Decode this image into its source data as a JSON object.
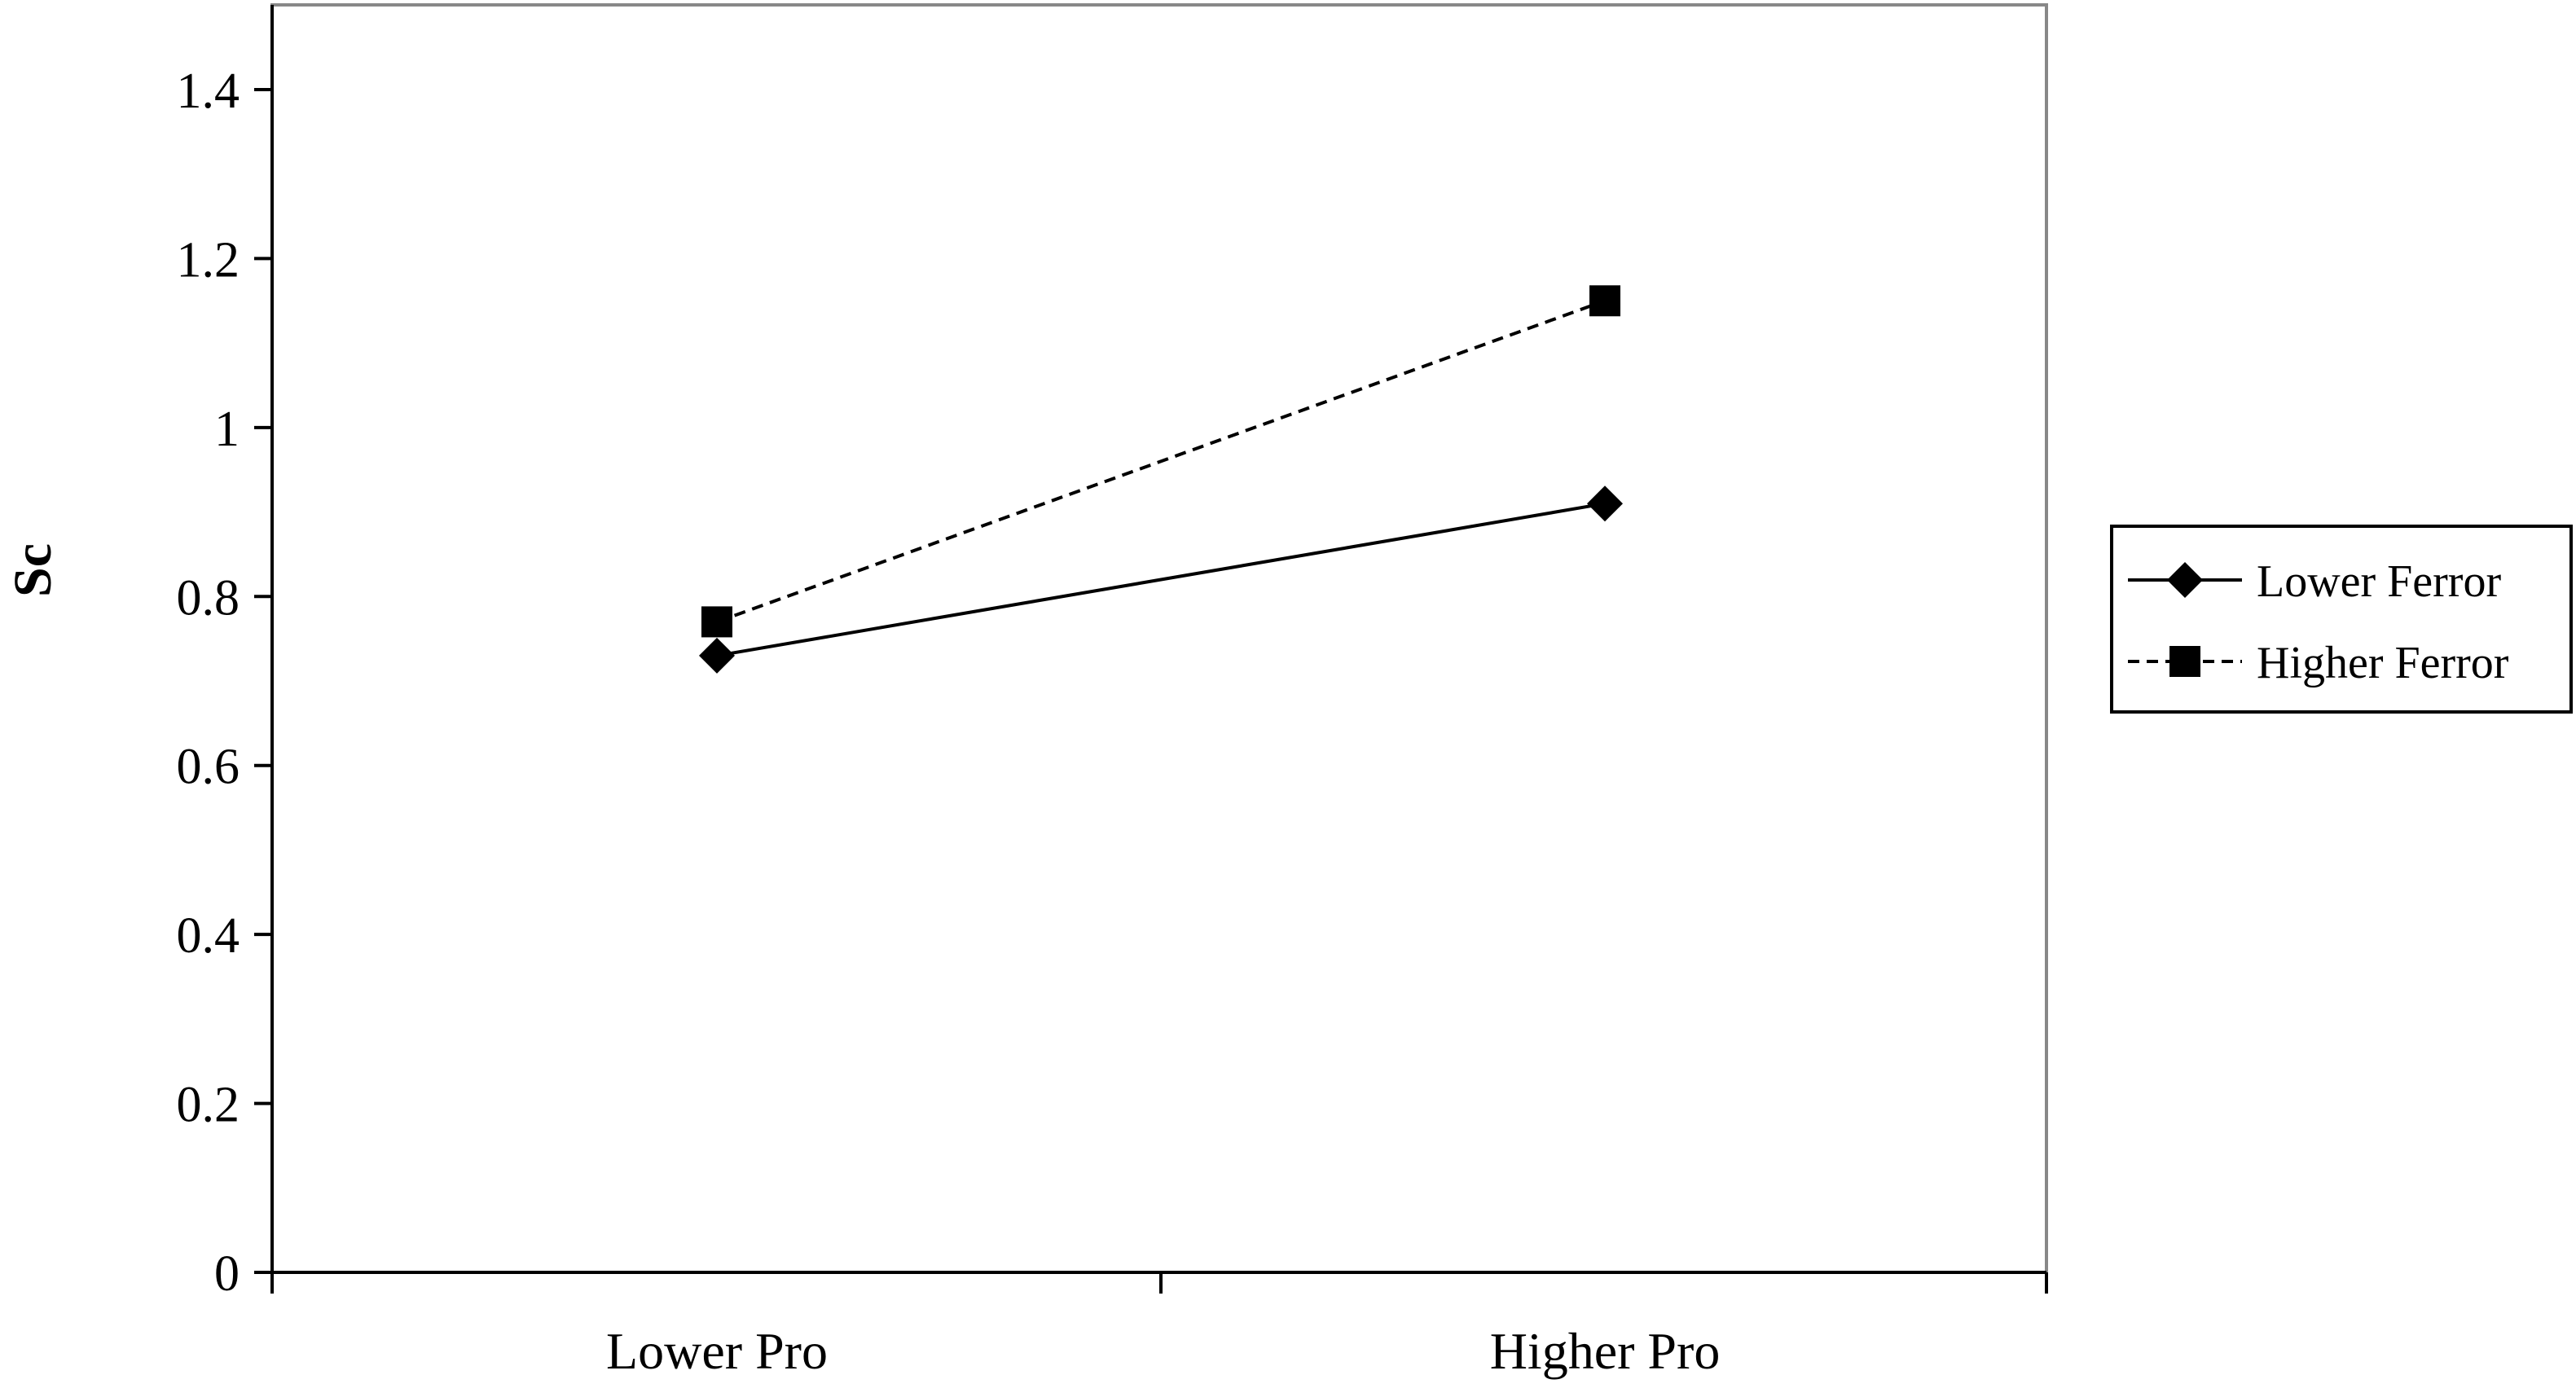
{
  "chart_data": {
    "type": "line",
    "categories": [
      "Lower Pro",
      "Higher Pro"
    ],
    "series": [
      {
        "name": "Lower Ferror",
        "values": [
          0.73,
          0.91
        ],
        "marker": "diamond",
        "line": "solid"
      },
      {
        "name": "Higher Ferror",
        "values": [
          0.77,
          1.15
        ],
        "marker": "square",
        "line": "dashed"
      }
    ],
    "title": "",
    "xlabel": "",
    "ylabel": "Sc",
    "ylim": [
      0,
      1.4
    ],
    "yticks": [
      0,
      0.2,
      0.4,
      0.6,
      0.8,
      1,
      1.2,
      1.4
    ],
    "ytick_labels": [
      "0",
      "0.2",
      "0.4",
      "0.6",
      "0.8",
      "1",
      "1.2",
      "1.4"
    ],
    "grid": false,
    "legend_position": "right",
    "colors": {
      "line": "#000000",
      "plot_border": "#888888",
      "background": "#ffffff"
    }
  }
}
